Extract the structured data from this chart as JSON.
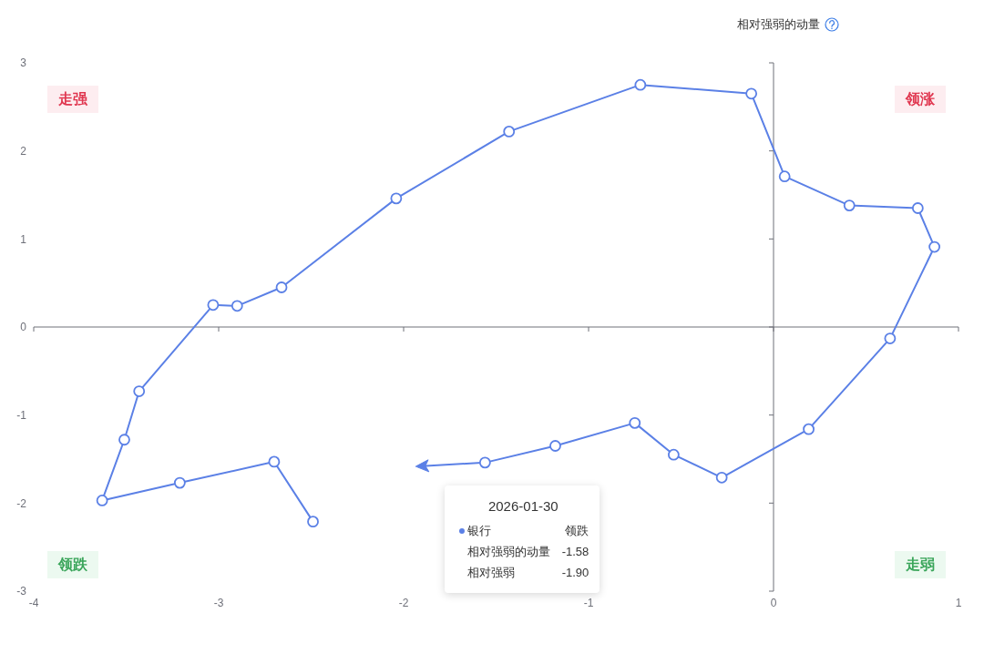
{
  "chart_data": {
    "type": "line",
    "ylabel": "相对强弱的动量",
    "series": [
      {
        "name": "银行",
        "color": "#5b80e6",
        "x": [
          -2.49,
          -2.7,
          -3.21,
          -3.63,
          -3.51,
          -3.43,
          -3.03,
          -2.9,
          -2.66,
          -2.04,
          -1.43,
          -0.72,
          -0.12,
          0.06,
          0.41,
          0.78,
          0.87,
          0.63,
          0.19,
          -0.28,
          -0.54,
          -0.75,
          -1.18,
          -1.56,
          -1.9
        ],
        "values": [
          -2.21,
          -1.53,
          -1.77,
          -1.97,
          -1.28,
          -0.73,
          0.25,
          0.24,
          0.45,
          1.46,
          2.22,
          2.75,
          2.65,
          1.71,
          1.38,
          1.35,
          0.91,
          -0.13,
          -1.16,
          -1.71,
          -1.45,
          -1.09,
          -1.35,
          -1.54,
          -1.58
        ]
      }
    ],
    "xlim": [
      -4,
      1
    ],
    "xticks": [
      -4,
      -3,
      -2,
      -1,
      0,
      1
    ],
    "ylim": [
      -3,
      3
    ],
    "yticks": [
      -3,
      -2,
      -1,
      0,
      1,
      2,
      3
    ],
    "marker": "circle",
    "annotations": [
      "走强",
      "领涨",
      "领跌",
      "走弱",
      "2026-01-30",
      "领跌",
      "相对强弱的动量",
      "-1.58",
      "相对强弱",
      "-1.90"
    ]
  }
}
